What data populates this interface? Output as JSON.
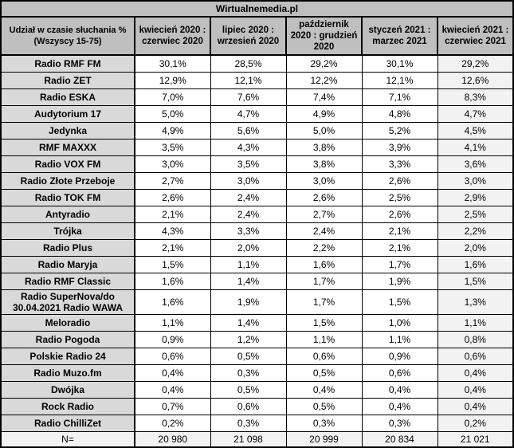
{
  "page_title": "Wirtualnemedia.pl",
  "colors": {
    "header_bg": "#bfbfbf",
    "station_bg": "#d9d9d9",
    "cell_bg": "#ffffff",
    "highlight_col_bg": "#f2f2f2",
    "footer_bg": "#f2f2f2",
    "border": "#000000",
    "text": "#000000"
  },
  "chart_data": {
    "type": "table",
    "title": "Wirtualnemedia.pl",
    "corner_header": "Udział w czasie słuchania %\n(Wszyscy 15-75)",
    "columns": [
      "kwiecień 2020 :\nczerwiec 2020",
      "lipiec 2020 :\nwrzesień 2020",
      "październik\n2020 : grudzień\n2020",
      "styczeń 2021 :\nmarzec 2021",
      "kwiecień 2021 :\nczerwiec 2021"
    ],
    "rows": [
      {
        "station": "Radio RMF FM",
        "values": [
          "30,1%",
          "28,5%",
          "29,2%",
          "30,1%",
          "29,2%"
        ]
      },
      {
        "station": "Radio ZET",
        "values": [
          "12,9%",
          "12,1%",
          "12,2%",
          "12,1%",
          "12,6%"
        ]
      },
      {
        "station": "Radio ESKA",
        "values": [
          "7,0%",
          "7,6%",
          "7,4%",
          "7,1%",
          "8,3%"
        ]
      },
      {
        "station": "Audytorium 17",
        "values": [
          "5,0%",
          "4,7%",
          "4,9%",
          "4,8%",
          "4,7%"
        ]
      },
      {
        "station": "Jedynka",
        "values": [
          "4,9%",
          "5,6%",
          "5,0%",
          "5,2%",
          "4,5%"
        ]
      },
      {
        "station": "RMF MAXXX",
        "values": [
          "3,5%",
          "4,3%",
          "3,8%",
          "3,9%",
          "4,1%"
        ]
      },
      {
        "station": "Radio VOX FM",
        "values": [
          "3,0%",
          "3,5%",
          "3,8%",
          "3,3%",
          "3,6%"
        ]
      },
      {
        "station": "Radio Złote Przeboje",
        "values": [
          "2,7%",
          "3,0%",
          "3,0%",
          "2,6%",
          "3,0%"
        ]
      },
      {
        "station": "Radio TOK FM",
        "values": [
          "2,6%",
          "2,4%",
          "2,6%",
          "2,5%",
          "2,9%"
        ]
      },
      {
        "station": "Antyradio",
        "values": [
          "2,1%",
          "2,4%",
          "2,7%",
          "2,6%",
          "2,5%"
        ]
      },
      {
        "station": "Trójka",
        "values": [
          "4,3%",
          "3,3%",
          "2,4%",
          "2,1%",
          "2,2%"
        ]
      },
      {
        "station": "Radio Plus",
        "values": [
          "2,1%",
          "2,0%",
          "2,2%",
          "2,1%",
          "2,0%"
        ]
      },
      {
        "station": "Radio Maryja",
        "values": [
          "1,5%",
          "1,1%",
          "1,6%",
          "1,7%",
          "1,6%"
        ]
      },
      {
        "station": "Radio RMF Classic",
        "values": [
          "1,6%",
          "1,4%",
          "1,7%",
          "1,9%",
          "1,5%"
        ]
      },
      {
        "station": "Radio SuperNova/do\n30.04.2021 Radio WAWA",
        "values": [
          "1,6%",
          "1,9%",
          "1,7%",
          "1,5%",
          "1,3%"
        ]
      },
      {
        "station": "Meloradio",
        "values": [
          "1,1%",
          "1,4%",
          "1,5%",
          "1,0%",
          "1,1%"
        ]
      },
      {
        "station": "Radio Pogoda",
        "values": [
          "0,9%",
          "1,2%",
          "1,1%",
          "1,1%",
          "0,8%"
        ]
      },
      {
        "station": "Polskie Radio 24",
        "values": [
          "0,6%",
          "0,5%",
          "0,6%",
          "0,9%",
          "0,6%"
        ]
      },
      {
        "station": "Radio Muzo.fm",
        "values": [
          "0,4%",
          "0,3%",
          "0,5%",
          "0,6%",
          "0,4%"
        ]
      },
      {
        "station": "Dwójka",
        "values": [
          "0,4%",
          "0,5%",
          "0,4%",
          "0,4%",
          "0,4%"
        ]
      },
      {
        "station": "Rock Radio",
        "values": [
          "0,7%",
          "0,6%",
          "0,5%",
          "0,4%",
          "0,4%"
        ]
      },
      {
        "station": "Radio ChilliZet",
        "values": [
          "0,2%",
          "0,3%",
          "0,3%",
          "0,3%",
          "0,2%"
        ]
      }
    ],
    "footer": {
      "label": "N=",
      "values": [
        "20 980",
        "21 098",
        "20 999",
        "20 834",
        "21 021"
      ]
    }
  }
}
